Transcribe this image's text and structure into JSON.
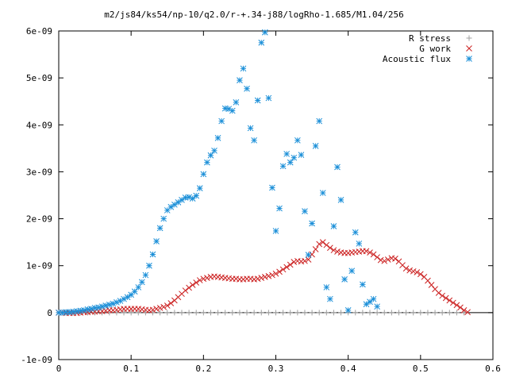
{
  "chart_data": {
    "type": "scatter",
    "title": "m2/js84/ks54/np-10/q2.0/r-+.34-j88/logRho-1.685/M1.04/256",
    "xlabel": "",
    "ylabel": "",
    "xlim": [
      0,
      0.6
    ],
    "ylim": [
      -1e-09,
      6e-09
    ],
    "grid": false,
    "legend_position": "top-right",
    "x_ticks": [
      0,
      0.1,
      0.2,
      0.3,
      0.4,
      0.5,
      0.6
    ],
    "x_tick_labels": [
      "0",
      "0.1",
      "0.2",
      "0.3",
      "0.4",
      "0.5",
      "0.6"
    ],
    "y_ticks": [
      -1e-09,
      0,
      1e-09,
      2e-09,
      3e-09,
      4e-09,
      5e-09,
      6e-09
    ],
    "y_tick_labels": [
      "-1e-09",
      "0",
      "1e-09",
      "2e-09",
      "3e-09",
      "4e-09",
      "5e-09",
      "6e-09"
    ],
    "series": [
      {
        "name": "R stress",
        "marker": "plus",
        "color": "#a0a0a0",
        "points": [
          [
            0,
            0
          ],
          [
            0.01,
            0
          ],
          [
            0.02,
            0
          ],
          [
            0.03,
            0
          ],
          [
            0.04,
            0
          ],
          [
            0.05,
            0
          ],
          [
            0.06,
            0
          ],
          [
            0.07,
            0
          ],
          [
            0.08,
            0
          ],
          [
            0.09,
            0
          ],
          [
            0.1,
            0
          ],
          [
            0.11,
            0
          ],
          [
            0.12,
            0
          ],
          [
            0.13,
            0
          ],
          [
            0.14,
            0
          ],
          [
            0.15,
            0
          ],
          [
            0.16,
            0
          ],
          [
            0.17,
            0
          ],
          [
            0.18,
            0
          ],
          [
            0.19,
            0
          ],
          [
            0.2,
            0
          ],
          [
            0.21,
            0
          ],
          [
            0.22,
            0
          ],
          [
            0.23,
            0
          ],
          [
            0.24,
            0
          ],
          [
            0.25,
            0
          ],
          [
            0.26,
            0
          ],
          [
            0.27,
            0
          ],
          [
            0.28,
            0
          ],
          [
            0.29,
            0
          ],
          [
            0.3,
            0
          ],
          [
            0.31,
            0
          ],
          [
            0.32,
            0
          ],
          [
            0.33,
            0
          ],
          [
            0.34,
            0
          ],
          [
            0.35,
            0
          ],
          [
            0.36,
            0
          ],
          [
            0.37,
            0
          ],
          [
            0.38,
            0
          ],
          [
            0.39,
            0
          ],
          [
            0.4,
            0
          ],
          [
            0.41,
            0
          ],
          [
            0.42,
            0
          ],
          [
            0.43,
            0
          ],
          [
            0.44,
            0
          ],
          [
            0.45,
            0
          ],
          [
            0.46,
            0
          ],
          [
            0.47,
            0
          ],
          [
            0.48,
            0
          ],
          [
            0.49,
            0
          ],
          [
            0.5,
            0
          ],
          [
            0.51,
            0
          ],
          [
            0.52,
            0
          ],
          [
            0.53,
            0
          ],
          [
            0.54,
            0
          ],
          [
            0.55,
            0
          ],
          [
            0.56,
            0
          ]
        ]
      },
      {
        "name": "G work",
        "marker": "cross",
        "color": "#cc2222",
        "points": [
          [
            0,
            0
          ],
          [
            0.005,
            0
          ],
          [
            0.01,
            -1e-11
          ],
          [
            0.015,
            -1e-11
          ],
          [
            0.02,
            -1e-11
          ],
          [
            0.025,
            -1e-11
          ],
          [
            0.03,
            0
          ],
          [
            0.035,
            1e-11
          ],
          [
            0.04,
            1e-11
          ],
          [
            0.045,
            2e-11
          ],
          [
            0.05,
            2e-11
          ],
          [
            0.055,
            3e-11
          ],
          [
            0.06,
            3e-11
          ],
          [
            0.065,
            4e-11
          ],
          [
            0.07,
            5e-11
          ],
          [
            0.075,
            5e-11
          ],
          [
            0.08,
            6e-11
          ],
          [
            0.085,
            7e-11
          ],
          [
            0.09,
            8e-11
          ],
          [
            0.095,
            8e-11
          ],
          [
            0.1,
            8e-11
          ],
          [
            0.105,
            8e-11
          ],
          [
            0.11,
            8e-11
          ],
          [
            0.115,
            7e-11
          ],
          [
            0.12,
            6e-11
          ],
          [
            0.125,
            5e-11
          ],
          [
            0.13,
            6e-11
          ],
          [
            0.135,
            8e-11
          ],
          [
            0.14,
            1e-10
          ],
          [
            0.145,
            1.2e-10
          ],
          [
            0.15,
            1.5e-10
          ],
          [
            0.155,
            2e-10
          ],
          [
            0.16,
            2.6e-10
          ],
          [
            0.165,
            3.3e-10
          ],
          [
            0.17,
            4e-10
          ],
          [
            0.175,
            4.7e-10
          ],
          [
            0.18,
            5.3e-10
          ],
          [
            0.185,
            5.9e-10
          ],
          [
            0.19,
            6.4e-10
          ],
          [
            0.195,
            6.9e-10
          ],
          [
            0.2,
            7.2e-10
          ],
          [
            0.205,
            7.4e-10
          ],
          [
            0.21,
            7.6e-10
          ],
          [
            0.215,
            7.7e-10
          ],
          [
            0.22,
            7.6e-10
          ],
          [
            0.225,
            7.5e-10
          ],
          [
            0.23,
            7.4e-10
          ],
          [
            0.235,
            7.3e-10
          ],
          [
            0.24,
            7.2e-10
          ],
          [
            0.245,
            7.2e-10
          ],
          [
            0.25,
            7.1e-10
          ],
          [
            0.255,
            7.1e-10
          ],
          [
            0.26,
            7.2e-10
          ],
          [
            0.265,
            7.2e-10
          ],
          [
            0.27,
            7.1e-10
          ],
          [
            0.275,
            7.2e-10
          ],
          [
            0.28,
            7.4e-10
          ],
          [
            0.285,
            7.6e-10
          ],
          [
            0.29,
            7.8e-10
          ],
          [
            0.295,
            8e-10
          ],
          [
            0.3,
            8.3e-10
          ],
          [
            0.305,
            8.7e-10
          ],
          [
            0.31,
            9.2e-10
          ],
          [
            0.315,
            9.7e-10
          ],
          [
            0.32,
            1.02e-09
          ],
          [
            0.325,
            1.08e-09
          ],
          [
            0.33,
            1.1e-09
          ],
          [
            0.335,
            1.09e-09
          ],
          [
            0.34,
            1.1e-09
          ],
          [
            0.345,
            1.13e-09
          ],
          [
            0.35,
            1.24e-09
          ],
          [
            0.355,
            1.35e-09
          ],
          [
            0.36,
            1.46e-09
          ],
          [
            0.365,
            1.5e-09
          ],
          [
            0.37,
            1.44e-09
          ],
          [
            0.375,
            1.38e-09
          ],
          [
            0.38,
            1.33e-09
          ],
          [
            0.385,
            1.3e-09
          ],
          [
            0.39,
            1.28e-09
          ],
          [
            0.395,
            1.27e-09
          ],
          [
            0.4,
            1.27e-09
          ],
          [
            0.405,
            1.28e-09
          ],
          [
            0.41,
            1.29e-09
          ],
          [
            0.415,
            1.3e-09
          ],
          [
            0.42,
            1.31e-09
          ],
          [
            0.425,
            1.31e-09
          ],
          [
            0.43,
            1.28e-09
          ],
          [
            0.435,
            1.24e-09
          ],
          [
            0.44,
            1.18e-09
          ],
          [
            0.445,
            1.12e-09
          ],
          [
            0.45,
            1.1e-09
          ],
          [
            0.455,
            1.13e-09
          ],
          [
            0.46,
            1.16e-09
          ],
          [
            0.465,
            1.15e-09
          ],
          [
            0.47,
            1.09e-09
          ],
          [
            0.475,
            1.01e-09
          ],
          [
            0.48,
            9.4e-10
          ],
          [
            0.485,
            9e-10
          ],
          [
            0.49,
            8.8e-10
          ],
          [
            0.495,
            8.6e-10
          ],
          [
            0.5,
            8.2e-10
          ],
          [
            0.505,
            7.6e-10
          ],
          [
            0.51,
            6.8e-10
          ],
          [
            0.515,
            5.9e-10
          ],
          [
            0.52,
            5e-10
          ],
          [
            0.525,
            4.2e-10
          ],
          [
            0.53,
            3.6e-10
          ],
          [
            0.535,
            3.1e-10
          ],
          [
            0.54,
            2.6e-10
          ],
          [
            0.545,
            2.1e-10
          ],
          [
            0.55,
            1.6e-10
          ],
          [
            0.555,
            1.1e-10
          ],
          [
            0.56,
            5e-11
          ],
          [
            0.565,
            1e-11
          ]
        ]
      },
      {
        "name": "Acoustic flux",
        "marker": "star",
        "color": "#1b8fd8",
        "points": [
          [
            0,
            0
          ],
          [
            0.005,
            0
          ],
          [
            0.01,
            1e-11
          ],
          [
            0.015,
            1e-11
          ],
          [
            0.02,
            2e-11
          ],
          [
            0.025,
            3e-11
          ],
          [
            0.03,
            4e-11
          ],
          [
            0.035,
            5e-11
          ],
          [
            0.04,
            7e-11
          ],
          [
            0.045,
            8e-11
          ],
          [
            0.05,
            1e-10
          ],
          [
            0.055,
            1.1e-10
          ],
          [
            0.06,
            1.3e-10
          ],
          [
            0.065,
            1.5e-10
          ],
          [
            0.07,
            1.7e-10
          ],
          [
            0.075,
            1.9e-10
          ],
          [
            0.08,
            2.2e-10
          ],
          [
            0.085,
            2.5e-10
          ],
          [
            0.09,
            2.9e-10
          ],
          [
            0.095,
            3.3e-10
          ],
          [
            0.1,
            3.8e-10
          ],
          [
            0.105,
            4.5e-10
          ],
          [
            0.11,
            5.4e-10
          ],
          [
            0.115,
            6.5e-10
          ],
          [
            0.12,
            8e-10
          ],
          [
            0.125,
            1e-09
          ],
          [
            0.13,
            1.24e-09
          ],
          [
            0.135,
            1.52e-09
          ],
          [
            0.14,
            1.8e-09
          ],
          [
            0.145,
            2e-09
          ],
          [
            0.15,
            2.18e-09
          ],
          [
            0.155,
            2.25e-09
          ],
          [
            0.16,
            2.3e-09
          ],
          [
            0.165,
            2.35e-09
          ],
          [
            0.17,
            2.4e-09
          ],
          [
            0.175,
            2.45e-09
          ],
          [
            0.18,
            2.46e-09
          ],
          [
            0.185,
            2.43e-09
          ],
          [
            0.19,
            2.49e-09
          ],
          [
            0.195,
            2.65e-09
          ],
          [
            0.2,
            2.95e-09
          ],
          [
            0.205,
            3.2e-09
          ],
          [
            0.21,
            3.35e-09
          ],
          [
            0.215,
            3.45e-09
          ],
          [
            0.22,
            3.72e-09
          ],
          [
            0.225,
            4.08e-09
          ],
          [
            0.23,
            4.35e-09
          ],
          [
            0.235,
            4.34e-09
          ],
          [
            0.24,
            4.3e-09
          ],
          [
            0.245,
            4.48e-09
          ],
          [
            0.25,
            4.95e-09
          ],
          [
            0.255,
            5.2e-09
          ],
          [
            0.26,
            4.77e-09
          ],
          [
            0.265,
            3.93e-09
          ],
          [
            0.27,
            3.67e-09
          ],
          [
            0.275,
            4.52e-09
          ],
          [
            0.28,
            5.75e-09
          ],
          [
            0.285,
            5.97e-09
          ],
          [
            0.29,
            4.57e-09
          ],
          [
            0.295,
            2.66e-09
          ],
          [
            0.3,
            1.74e-09
          ],
          [
            0.305,
            2.22e-09
          ],
          [
            0.31,
            3.12e-09
          ],
          [
            0.315,
            3.38e-09
          ],
          [
            0.32,
            3.2e-09
          ],
          [
            0.325,
            3.3e-09
          ],
          [
            0.33,
            3.67e-09
          ],
          [
            0.335,
            3.36e-09
          ],
          [
            0.34,
            2.16e-09
          ],
          [
            0.345,
            1.23e-09
          ],
          [
            0.35,
            1.9e-09
          ],
          [
            0.355,
            3.55e-09
          ],
          [
            0.36,
            4.08e-09
          ],
          [
            0.365,
            2.55e-09
          ],
          [
            0.37,
            5.4e-10
          ],
          [
            0.375,
            2.9e-10
          ],
          [
            0.38,
            1.84e-09
          ],
          [
            0.385,
            3.1e-09
          ],
          [
            0.39,
            2.4e-09
          ],
          [
            0.395,
            7.1e-10
          ],
          [
            0.4,
            5e-11
          ],
          [
            0.405,
            8.9e-10
          ],
          [
            0.41,
            1.71e-09
          ],
          [
            0.415,
            1.47e-09
          ],
          [
            0.42,
            6e-10
          ],
          [
            0.425,
            1.8e-10
          ],
          [
            0.43,
            2.3e-10
          ],
          [
            0.435,
            2.9e-10
          ],
          [
            0.44,
            1.3e-10
          ]
        ]
      }
    ]
  }
}
